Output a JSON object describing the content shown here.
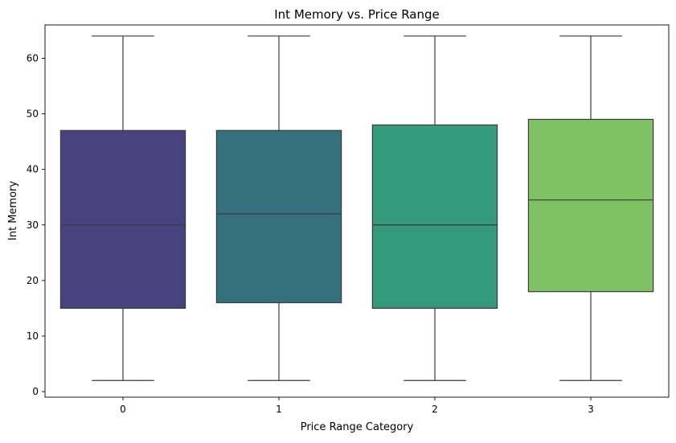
{
  "chart_data": {
    "type": "box",
    "title": "Int Memory vs. Price Range",
    "xlabel": "Price Range Category",
    "ylabel": "Int Memory",
    "categories": [
      "0",
      "1",
      "2",
      "3"
    ],
    "y_ticks": [
      0,
      10,
      20,
      30,
      40,
      50,
      60
    ],
    "ylim": [
      -1,
      66
    ],
    "grid": false,
    "boxes": [
      {
        "category": "0",
        "whisker_low": 2,
        "q1": 15,
        "median": 30,
        "q3": 47,
        "whisker_high": 64,
        "color": "#46437e"
      },
      {
        "category": "1",
        "whisker_low": 2,
        "q1": 16,
        "median": 32,
        "q3": 47,
        "whisker_high": 64,
        "color": "#35707f"
      },
      {
        "category": "2",
        "whisker_low": 2,
        "q1": 15,
        "median": 30,
        "q3": 48,
        "whisker_high": 64,
        "color": "#35997b"
      },
      {
        "category": "3",
        "whisker_low": 2,
        "q1": 18,
        "median": 34.5,
        "q3": 49,
        "whisker_high": 64,
        "color": "#7fc263"
      }
    ],
    "line_color": "#3a3a3a"
  }
}
